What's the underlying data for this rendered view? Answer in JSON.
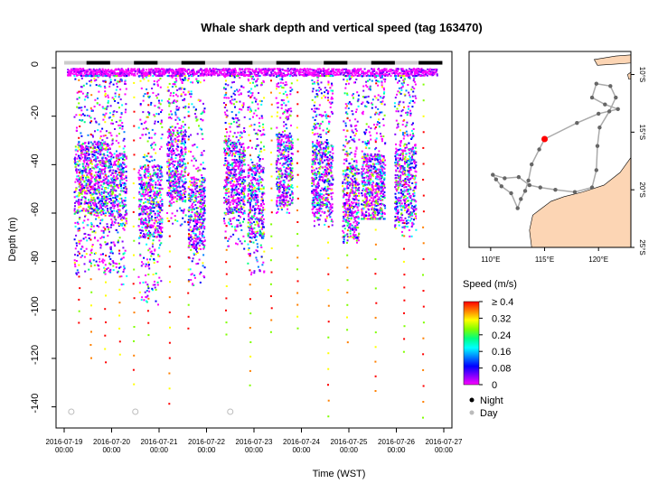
{
  "chart_data": [
    {
      "type": "scatter",
      "title": "Whale shark depth and vertical speed (tag 163470)",
      "xlabel": "Time (WST)",
      "ylabel": "Depth (m)",
      "x_ticks": [
        {
          "date": "2016-07-19",
          "time": "00:00",
          "day": 0
        },
        {
          "date": "2016-07-20",
          "time": "00:00",
          "day": 1
        },
        {
          "date": "2016-07-21",
          "time": "00:00",
          "day": 2
        },
        {
          "date": "2016-07-22",
          "time": "00:00",
          "day": 3
        },
        {
          "date": "2016-07-23",
          "time": "00:00",
          "day": 4
        },
        {
          "date": "2016-07-24",
          "time": "00:00",
          "day": 5
        },
        {
          "date": "2016-07-25",
          "time": "00:00",
          "day": 6
        },
        {
          "date": "2016-07-26",
          "time": "00:00",
          "day": 7
        },
        {
          "date": "2016-07-27",
          "time": "00:00",
          "day": 8
        }
      ],
      "xlim": [
        0,
        8
      ],
      "y_ticks": [
        0,
        -20,
        -40,
        -60,
        -80,
        -100,
        -120,
        -140
      ],
      "ylim": [
        -145,
        3
      ],
      "colorbar": {
        "label": "Speed (m/s)",
        "ticks": [
          "≥ 0.4",
          "0.32",
          "0.24",
          "0.16",
          "0.08",
          "0"
        ],
        "tick_values": [
          0.4,
          0.32,
          0.24,
          0.16,
          0.08,
          0
        ],
        "colors": [
          "#ff0000",
          "#ff8000",
          "#ffff00",
          "#80ff00",
          "#00ff80",
          "#00ffff",
          "#0080ff",
          "#0000ff",
          "#8000ff",
          "#ff00ff"
        ]
      },
      "legend": [
        {
          "label": "Night",
          "color": "#000000"
        },
        {
          "label": "Day",
          "color": "#bbbbbb"
        }
      ],
      "day_night_bar": [
        {
          "start": 0.0,
          "end": 0.47,
          "phase": "day"
        },
        {
          "start": 0.47,
          "end": 0.97,
          "phase": "night"
        },
        {
          "start": 0.97,
          "end": 1.47,
          "phase": "day"
        },
        {
          "start": 1.47,
          "end": 1.97,
          "phase": "night"
        },
        {
          "start": 1.97,
          "end": 2.47,
          "phase": "day"
        },
        {
          "start": 2.47,
          "end": 2.97,
          "phase": "night"
        },
        {
          "start": 2.97,
          "end": 3.47,
          "phase": "day"
        },
        {
          "start": 3.47,
          "end": 3.97,
          "phase": "night"
        },
        {
          "start": 3.97,
          "end": 4.47,
          "phase": "day"
        },
        {
          "start": 4.47,
          "end": 4.97,
          "phase": "night"
        },
        {
          "start": 4.97,
          "end": 5.47,
          "phase": "day"
        },
        {
          "start": 5.47,
          "end": 5.97,
          "phase": "night"
        },
        {
          "start": 5.97,
          "end": 6.47,
          "phase": "day"
        },
        {
          "start": 6.47,
          "end": 6.97,
          "phase": "night"
        },
        {
          "start": 6.97,
          "end": 7.47,
          "phase": "day"
        },
        {
          "start": 7.47,
          "end": 7.97,
          "phase": "night"
        }
      ],
      "dive_series": [
        {
          "start": 0.2,
          "end": 0.95,
          "max_depth": -85,
          "base_depth": -45
        },
        {
          "start": 0.95,
          "end": 1.3,
          "max_depth": -90,
          "base_depth": -50
        },
        {
          "start": 1.55,
          "end": 2.05,
          "max_depth": -98,
          "base_depth": -55
        },
        {
          "start": 2.15,
          "end": 2.55,
          "max_depth": -65,
          "base_depth": -40
        },
        {
          "start": 2.6,
          "end": 2.95,
          "max_depth": -90,
          "base_depth": -60
        },
        {
          "start": 3.35,
          "end": 3.8,
          "max_depth": -75,
          "base_depth": -45
        },
        {
          "start": 3.85,
          "end": 4.2,
          "max_depth": -85,
          "base_depth": -55
        },
        {
          "start": 4.45,
          "end": 4.8,
          "max_depth": -60,
          "base_depth": -42
        },
        {
          "start": 5.2,
          "end": 5.65,
          "max_depth": -65,
          "base_depth": -45
        },
        {
          "start": 5.85,
          "end": 6.2,
          "max_depth": -72,
          "base_depth": -55
        },
        {
          "start": 6.25,
          "end": 6.75,
          "max_depth": -62,
          "base_depth": -50
        },
        {
          "start": 6.95,
          "end": 7.4,
          "max_depth": -70,
          "base_depth": -48
        }
      ],
      "fast_descents": [
        0.3,
        0.55,
        0.85,
        1.15,
        1.45,
        1.75,
        2.2,
        2.6,
        3.4,
        3.9,
        4.35,
        4.9,
        5.55,
        5.95,
        6.55,
        7.15,
        7.55
      ],
      "day_marker_points": [
        {
          "x": 0.15,
          "y": -142
        },
        {
          "x": 1.5,
          "y": -142
        },
        {
          "x": 3.5,
          "y": -142
        }
      ]
    },
    {
      "type": "map",
      "x_ticks": [
        "110°E",
        "115°E",
        "120°E"
      ],
      "x_tick_values": [
        110,
        115,
        120
      ],
      "y_ticks": [
        "10°S",
        "15°S",
        "20°S",
        "25°S"
      ],
      "y_tick_values": [
        -10,
        -15,
        -20,
        -25
      ],
      "xlim": [
        108,
        123
      ],
      "ylim": [
        -25,
        -8
      ],
      "colors": {
        "land": "#fcd5b4",
        "track": "#aaaaaa",
        "locations": "#666666",
        "tag_location": "#ff0000"
      },
      "track": [
        [
          115.0,
          -15.6
        ],
        [
          114.5,
          -16.5
        ],
        [
          113.8,
          -17.8
        ],
        [
          113.5,
          -19.2
        ],
        [
          113.2,
          -20.1
        ],
        [
          112.8,
          -20.8
        ],
        [
          112.5,
          -21.6
        ],
        [
          111.9,
          -20.3
        ],
        [
          111.0,
          -19.7
        ],
        [
          110.5,
          -19.1
        ],
        [
          110.2,
          -18.7
        ],
        [
          111.3,
          -19.0
        ],
        [
          112.6,
          -18.9
        ],
        [
          113.6,
          -19.6
        ],
        [
          114.6,
          -19.8
        ],
        [
          116.0,
          -20.0
        ],
        [
          117.8,
          -20.2
        ],
        [
          119.4,
          -19.8
        ],
        [
          119.8,
          -18.3
        ],
        [
          119.9,
          -16.2
        ],
        [
          120.1,
          -14.6
        ],
        [
          121.0,
          -13.2
        ],
        [
          121.6,
          -12.0
        ],
        [
          121.1,
          -11.0
        ],
        [
          119.8,
          -10.8
        ],
        [
          119.4,
          -12.0
        ],
        [
          120.6,
          -12.6
        ],
        [
          121.8,
          -13.0
        ],
        [
          120.0,
          -13.4
        ],
        [
          118.0,
          -14.2
        ],
        [
          115.0,
          -15.6
        ]
      ],
      "tag_location": [
        115.0,
        -15.6
      ]
    }
  ]
}
